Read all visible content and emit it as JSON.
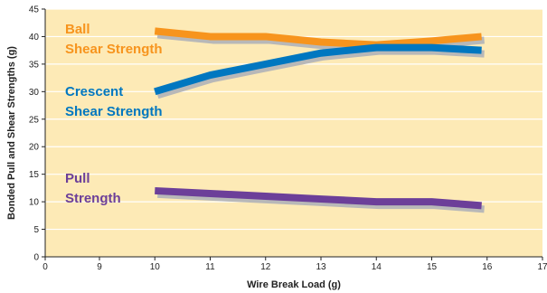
{
  "chart_data": {
    "type": "line",
    "xlabel": "Wire Break Load (g)",
    "ylabel": "Bonded Pull and Shear Strengths (g)",
    "xlim": [
      0,
      17
    ],
    "ylim": [
      0,
      45
    ],
    "x_ticks": [
      0,
      9,
      10,
      11,
      12,
      13,
      14,
      15,
      16,
      17
    ],
    "y_ticks": [
      0,
      5,
      10,
      15,
      20,
      25,
      30,
      35,
      40,
      45
    ],
    "axis_break": "x axis jumps from 0 to 9 (first interval compressed)",
    "plot_background": "#fdeab6",
    "grid": "horizontal only, white",
    "series": [
      {
        "name": "Ball Shear Strength",
        "label_lines": [
          "Ball",
          "Shear Strength"
        ],
        "color": "#f7941d",
        "x": [
          10,
          11,
          12,
          13,
          14,
          15,
          15.9
        ],
        "y": [
          41,
          40,
          40,
          39,
          38.5,
          39.2,
          40
        ]
      },
      {
        "name": "Crescent Shear Strength",
        "label_lines": [
          "Crescent",
          "Shear Strength"
        ],
        "color": "#0077c0",
        "x": [
          10,
          11,
          12,
          13,
          14,
          15,
          15.9
        ],
        "y": [
          30,
          33,
          35,
          37,
          38,
          38,
          37.5
        ]
      },
      {
        "name": "Pull Strength",
        "label_lines": [
          "Pull",
          "Strength"
        ],
        "color": "#6c3f99",
        "x": [
          10,
          11,
          12,
          13,
          14,
          15,
          15.9
        ],
        "y": [
          12,
          11.5,
          11,
          10.5,
          10,
          10,
          9.3
        ]
      }
    ],
    "shadow_color": "#b8b8b8"
  }
}
